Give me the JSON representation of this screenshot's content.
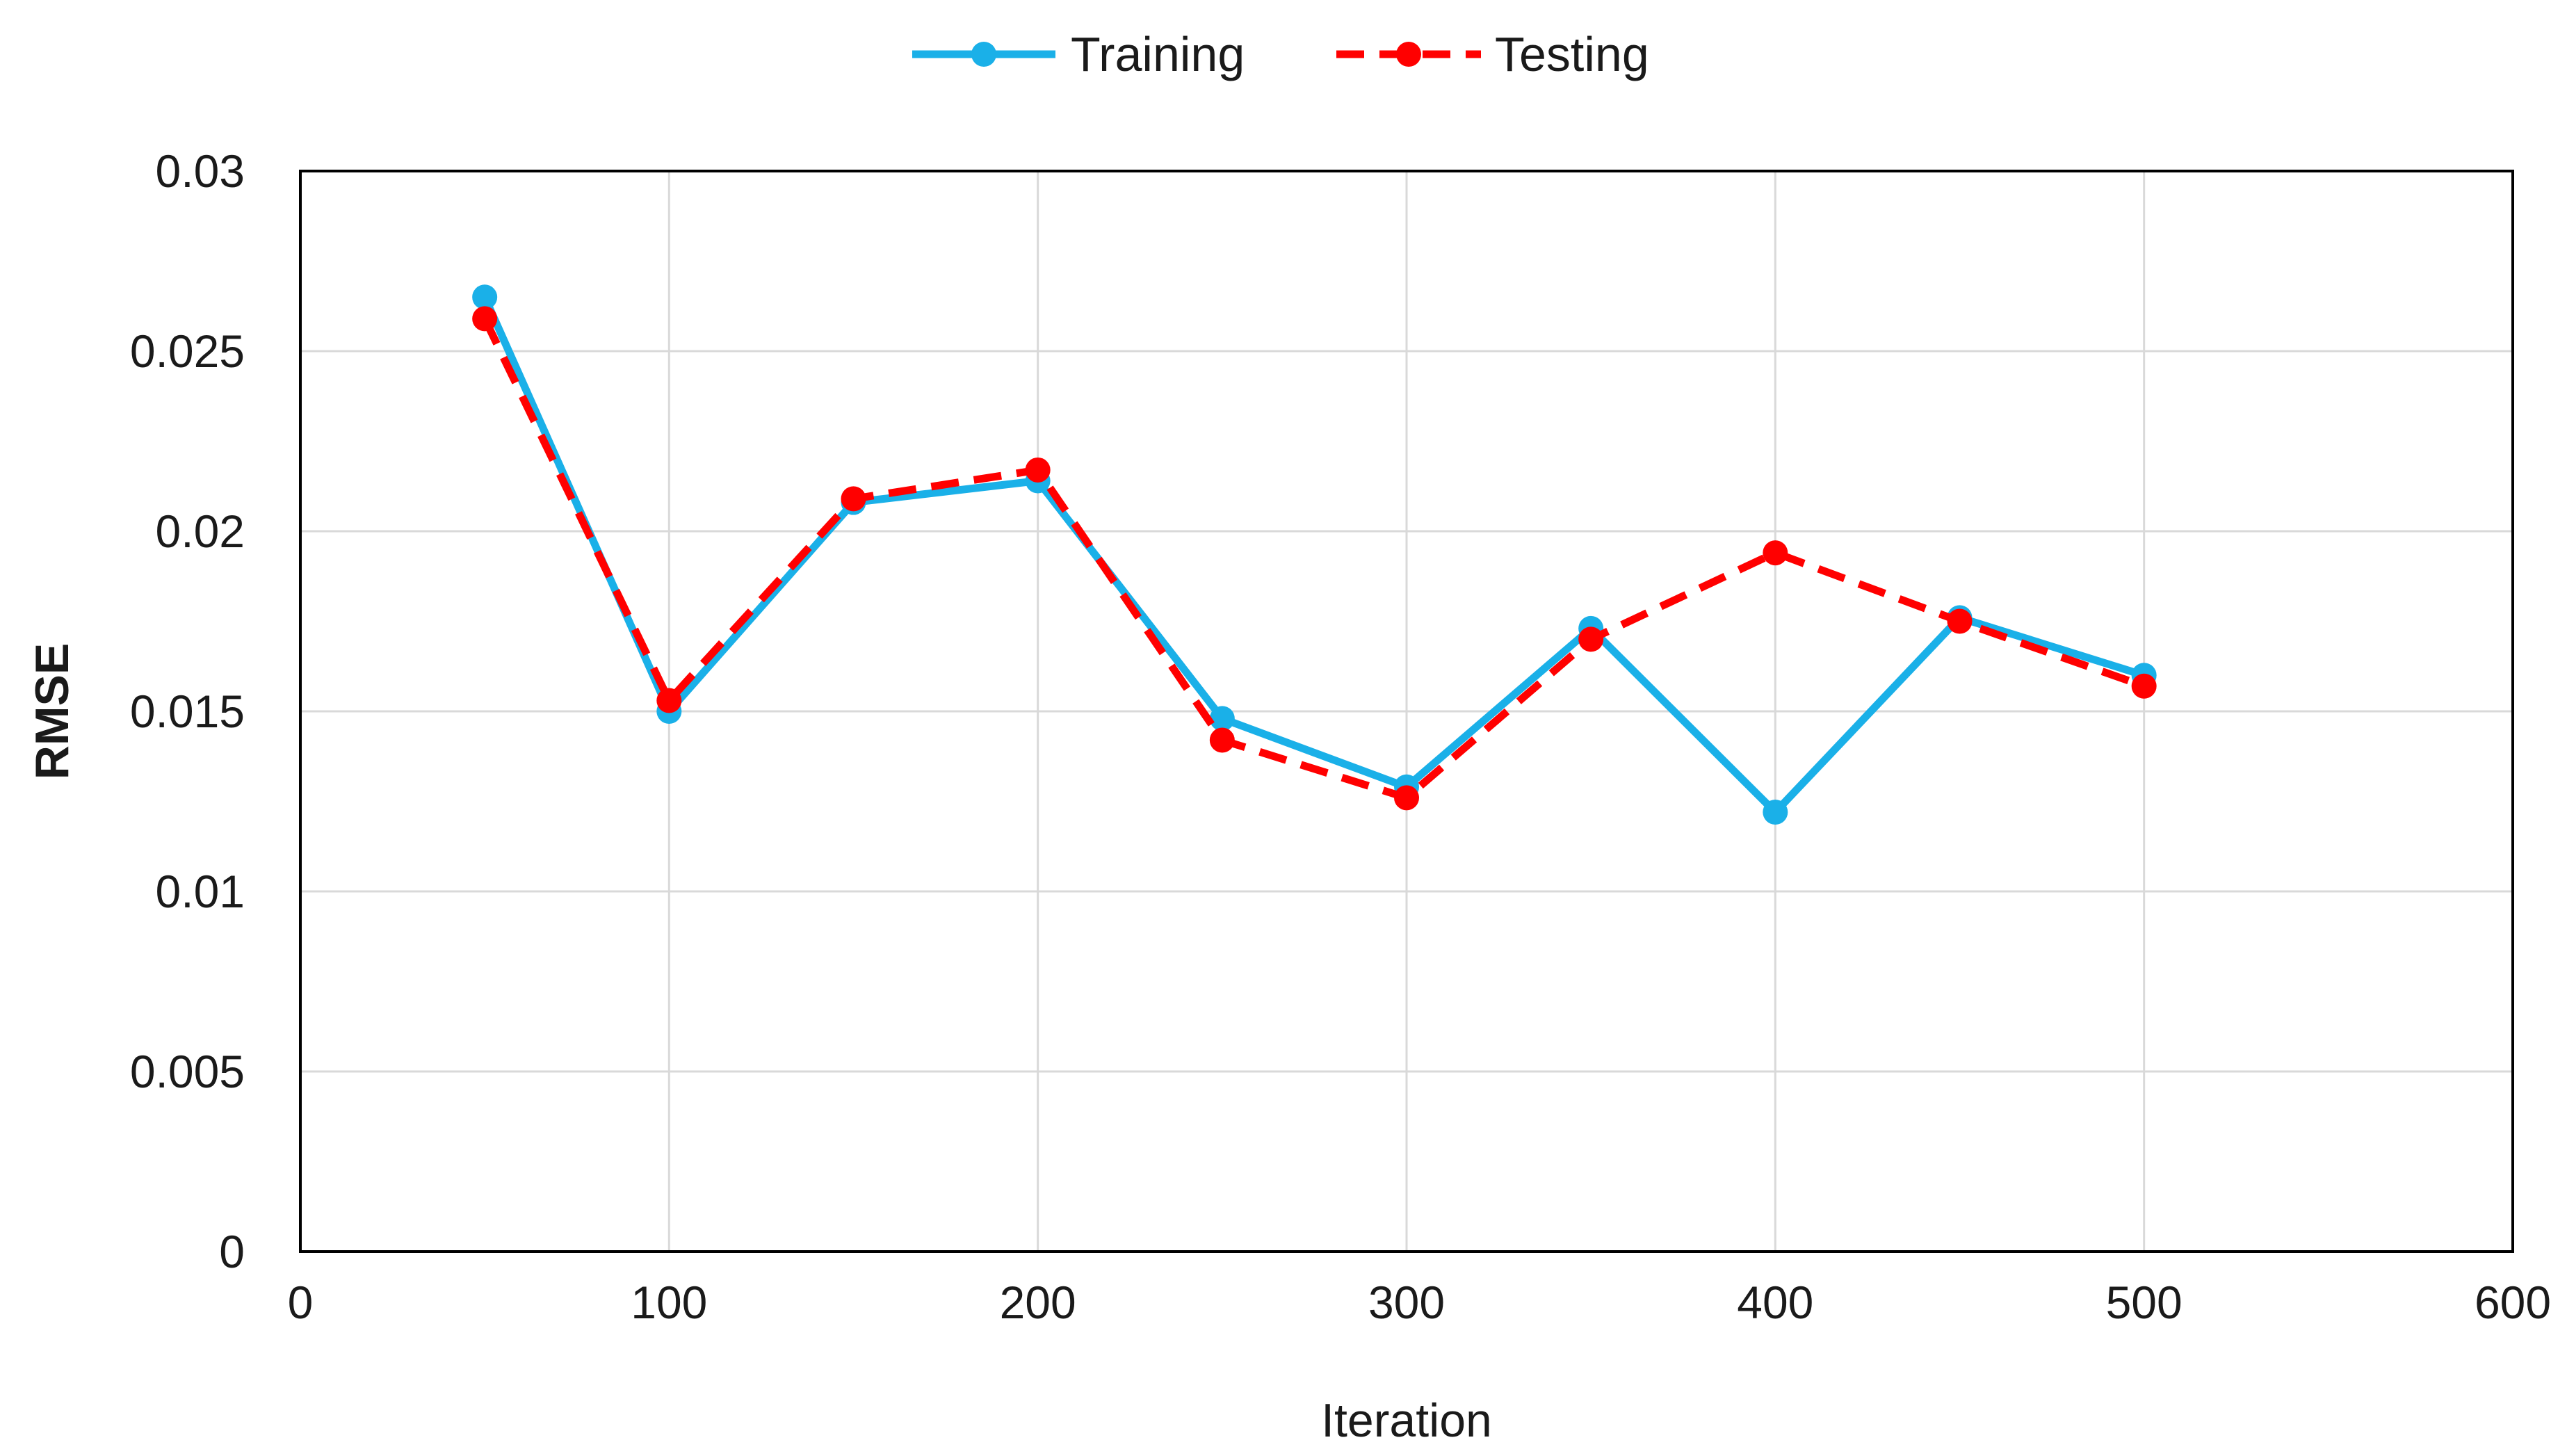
{
  "chart_data": {
    "type": "line",
    "title": "",
    "xlabel": "Iteration",
    "ylabel": "RMSE",
    "xlim": [
      0,
      600
    ],
    "ylim": [
      0,
      0.03
    ],
    "xticks": [
      0,
      100,
      200,
      300,
      400,
      500,
      600
    ],
    "yticks": [
      0,
      0.005,
      0.01,
      0.015,
      0.02,
      0.025,
      0.03
    ],
    "xtick_labels": [
      "0",
      "100",
      "200",
      "300",
      "400",
      "500",
      "600"
    ],
    "ytick_labels": [
      "0",
      "0.005",
      "0.01",
      "0.015",
      "0.02",
      "0.025",
      "0.03"
    ],
    "grid": true,
    "legend_position": "top-center",
    "x": [
      50,
      100,
      150,
      200,
      250,
      300,
      350,
      400,
      450,
      500
    ],
    "series": [
      {
        "name": "Training",
        "color": "#1ab0e8",
        "style": "solid",
        "marker": "circle",
        "values": [
          0.0265,
          0.015,
          0.0208,
          0.0214,
          0.0148,
          0.0129,
          0.0173,
          0.0122,
          0.0176,
          0.016
        ]
      },
      {
        "name": "Testing",
        "color": "#ff0000",
        "style": "dashed",
        "marker": "circle",
        "values": [
          0.0259,
          0.0153,
          0.0209,
          0.0217,
          0.0142,
          0.0126,
          0.017,
          0.0194,
          0.0175,
          0.0157
        ]
      }
    ]
  }
}
